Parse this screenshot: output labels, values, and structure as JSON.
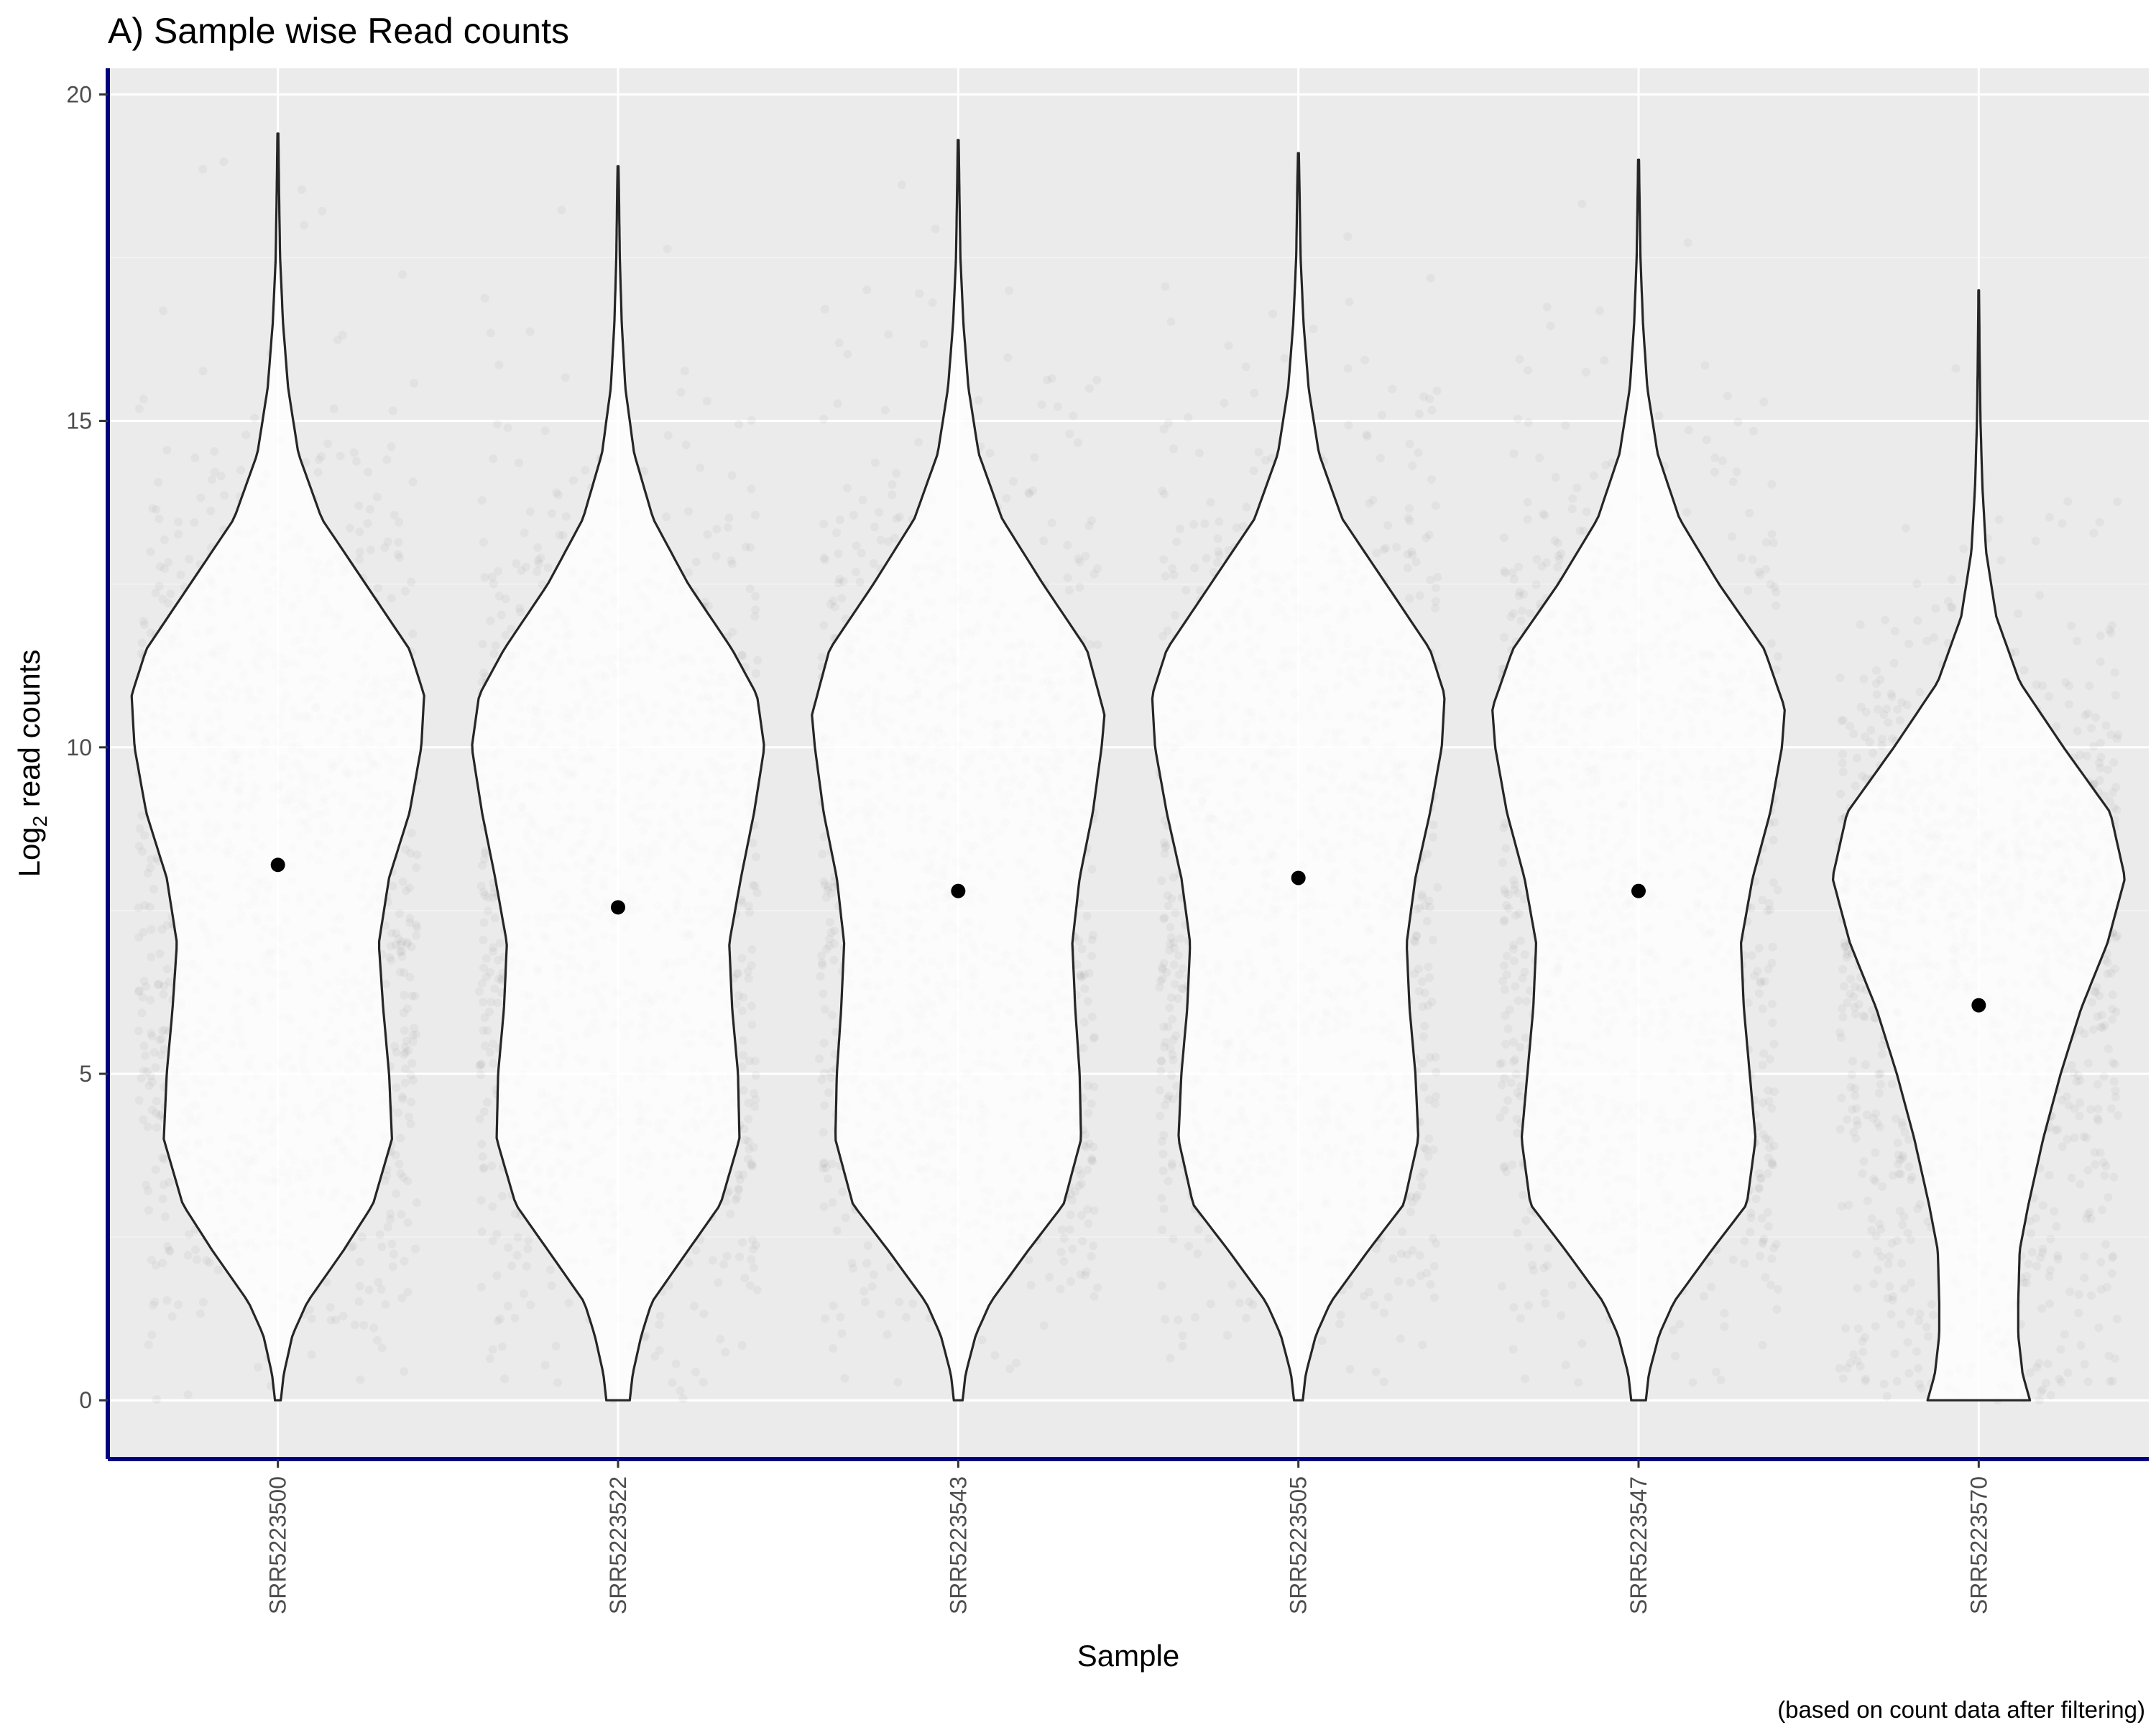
{
  "colors": {
    "panel_background": "#ebebeb",
    "grid_major": "#ffffff",
    "grid_minor": "#f3f3f3",
    "axis_line": "#000080",
    "violin_stroke": "#262626",
    "violin_fill": "#ffffff",
    "point": "#808080",
    "median_point": "#000000"
  },
  "chart_data": {
    "type": "violin",
    "title": "A) Sample wise Read counts",
    "xlabel": "Sample",
    "ylabel": "Log",
    "ylabel_sub": "2",
    "ylabel_rest": " read counts",
    "caption": "(based on count data after filtering)",
    "ylim": [
      -0.9,
      20.4
    ],
    "yticks": [
      0,
      5,
      10,
      15,
      20
    ],
    "grid": true,
    "categories": [
      "SRR5223500",
      "SRR5223522",
      "SRR5223543",
      "SRR5223505",
      "SRR5223547",
      "SRR5223570"
    ],
    "series": [
      {
        "category": "SRR5223500",
        "max": 19.4,
        "median_point": 8.2,
        "density": [
          [
            0,
            0.02
          ],
          [
            0.4,
            0.04
          ],
          [
            1,
            0.1
          ],
          [
            1.5,
            0.2
          ],
          [
            2.3,
            0.45
          ],
          [
            3,
            0.65
          ],
          [
            4,
            0.78
          ],
          [
            5,
            0.76
          ],
          [
            6,
            0.72
          ],
          [
            7,
            0.69
          ],
          [
            8,
            0.76
          ],
          [
            9,
            0.9
          ],
          [
            10,
            0.98
          ],
          [
            10.8,
            1.0
          ],
          [
            11.5,
            0.9
          ],
          [
            12.5,
            0.6
          ],
          [
            13.5,
            0.3
          ],
          [
            14.5,
            0.14
          ],
          [
            15.5,
            0.07
          ],
          [
            16.5,
            0.035
          ],
          [
            17.5,
            0.015
          ],
          [
            18.5,
            0.008
          ],
          [
            19.4,
            0.003
          ]
        ]
      },
      {
        "category": "SRR5223522",
        "max": 18.9,
        "median_point": 7.55,
        "density": [
          [
            0,
            0.08
          ],
          [
            0.4,
            0.1
          ],
          [
            1,
            0.16
          ],
          [
            1.5,
            0.23
          ],
          [
            2.3,
            0.48
          ],
          [
            3,
            0.7
          ],
          [
            4,
            0.83
          ],
          [
            5,
            0.82
          ],
          [
            6,
            0.78
          ],
          [
            7,
            0.76
          ],
          [
            8,
            0.84
          ],
          [
            9,
            0.93
          ],
          [
            10,
            1.0
          ],
          [
            10.8,
            0.95
          ],
          [
            11.5,
            0.78
          ],
          [
            12.5,
            0.48
          ],
          [
            13.5,
            0.24
          ],
          [
            14.5,
            0.11
          ],
          [
            15.5,
            0.05
          ],
          [
            16.5,
            0.025
          ],
          [
            17.5,
            0.012
          ],
          [
            18.5,
            0.006
          ],
          [
            18.9,
            0.003
          ]
        ]
      },
      {
        "category": "SRR5223543",
        "max": 19.3,
        "median_point": 7.8,
        "density": [
          [
            0,
            0.03
          ],
          [
            0.4,
            0.05
          ],
          [
            1,
            0.12
          ],
          [
            1.5,
            0.22
          ],
          [
            2.3,
            0.48
          ],
          [
            3,
            0.72
          ],
          [
            4,
            0.84
          ],
          [
            5,
            0.83
          ],
          [
            6,
            0.8
          ],
          [
            7,
            0.78
          ],
          [
            8,
            0.83
          ],
          [
            9,
            0.92
          ],
          [
            10,
            0.98
          ],
          [
            10.5,
            1.0
          ],
          [
            11.5,
            0.88
          ],
          [
            12.5,
            0.58
          ],
          [
            13.5,
            0.3
          ],
          [
            14.5,
            0.14
          ],
          [
            15.5,
            0.07
          ],
          [
            16.5,
            0.035
          ],
          [
            17.5,
            0.015
          ],
          [
            18.5,
            0.008
          ],
          [
            19.3,
            0.003
          ]
        ]
      },
      {
        "category": "SRR5223505",
        "max": 19.1,
        "median_point": 8.0,
        "density": [
          [
            0,
            0.03
          ],
          [
            0.4,
            0.05
          ],
          [
            1,
            0.12
          ],
          [
            1.5,
            0.22
          ],
          [
            2.3,
            0.48
          ],
          [
            3,
            0.72
          ],
          [
            4,
            0.82
          ],
          [
            5,
            0.8
          ],
          [
            6,
            0.76
          ],
          [
            7,
            0.74
          ],
          [
            8,
            0.8
          ],
          [
            9,
            0.9
          ],
          [
            10,
            0.98
          ],
          [
            10.8,
            1.0
          ],
          [
            11.5,
            0.9
          ],
          [
            12.5,
            0.6
          ],
          [
            13.5,
            0.3
          ],
          [
            14.5,
            0.14
          ],
          [
            15.5,
            0.07
          ],
          [
            16.5,
            0.035
          ],
          [
            17.5,
            0.015
          ],
          [
            18.5,
            0.008
          ],
          [
            19.1,
            0.003
          ]
        ]
      },
      {
        "category": "SRR5223547",
        "max": 19.0,
        "median_point": 7.8,
        "density": [
          [
            0,
            0.05
          ],
          [
            0.4,
            0.07
          ],
          [
            1,
            0.14
          ],
          [
            1.5,
            0.24
          ],
          [
            2.3,
            0.5
          ],
          [
            3,
            0.74
          ],
          [
            4,
            0.8
          ],
          [
            5,
            0.76
          ],
          [
            6,
            0.72
          ],
          [
            7,
            0.7
          ],
          [
            8,
            0.78
          ],
          [
            9,
            0.9
          ],
          [
            10,
            0.98
          ],
          [
            10.6,
            1.0
          ],
          [
            11.5,
            0.86
          ],
          [
            12.5,
            0.55
          ],
          [
            13.5,
            0.28
          ],
          [
            14.5,
            0.13
          ],
          [
            15.5,
            0.06
          ],
          [
            16.5,
            0.03
          ],
          [
            17.5,
            0.013
          ],
          [
            18.5,
            0.006
          ],
          [
            19,
            0.003
          ]
        ]
      },
      {
        "category": "SRR5223570",
        "max": 17.0,
        "median_point": 6.05,
        "density": [
          [
            0,
            0.35
          ],
          [
            0.4,
            0.3
          ],
          [
            1,
            0.27
          ],
          [
            1.5,
            0.27
          ],
          [
            2.3,
            0.28
          ],
          [
            3,
            0.34
          ],
          [
            4,
            0.44
          ],
          [
            5,
            0.56
          ],
          [
            6,
            0.7
          ],
          [
            7,
            0.88
          ],
          [
            8,
            1.0
          ],
          [
            9,
            0.9
          ],
          [
            10,
            0.58
          ],
          [
            11,
            0.28
          ],
          [
            12,
            0.12
          ],
          [
            13,
            0.05
          ],
          [
            14,
            0.025
          ],
          [
            15,
            0.012
          ],
          [
            16,
            0.006
          ],
          [
            17,
            0.002
          ]
        ]
      }
    ]
  }
}
